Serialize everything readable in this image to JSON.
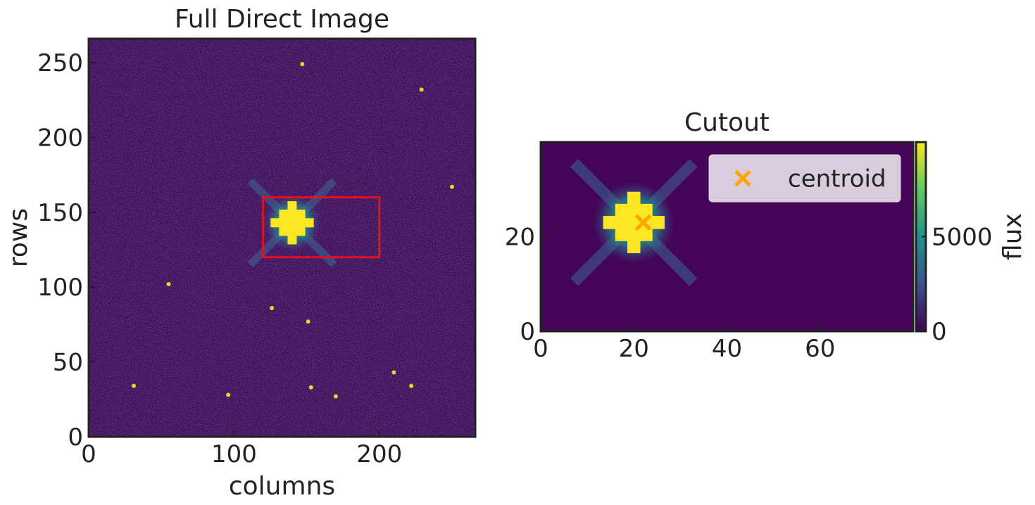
{
  "chart_data": [
    {
      "type": "image",
      "title": "Full Direct Image",
      "xlabel": "columns",
      "ylabel": "rows",
      "xlim": [
        0,
        266
      ],
      "ylim": [
        0,
        266
      ],
      "xticks": [
        0,
        100,
        200
      ],
      "yticks": [
        0,
        50,
        100,
        150,
        200,
        250
      ],
      "background": "#430f5c",
      "star": {
        "x": 140,
        "y": 143
      },
      "sources": {
        "x": [
          126,
          151,
          31,
          153,
          210,
          222,
          170,
          96,
          229,
          250,
          55,
          147
        ],
        "y": [
          86,
          77,
          34,
          33,
          43,
          34,
          27,
          28,
          232,
          167,
          102,
          249
        ],
        "color": "#d8e219"
      },
      "box": {
        "x": [
          120,
          200
        ],
        "y": [
          120,
          160
        ],
        "color": "#e0141e"
      }
    },
    {
      "type": "image",
      "title": "Cutout",
      "xlim": [
        0,
        80
      ],
      "ylim": [
        0,
        40
      ],
      "xticks": [
        0,
        20,
        40,
        60
      ],
      "yticks": [
        0,
        20
      ],
      "background": "#440558",
      "star": {
        "x": 20,
        "y": 23
      },
      "centroid": {
        "name": "centroid",
        "x": 22,
        "y": 23,
        "color": "#ffa500"
      },
      "legend": "upper right",
      "colorbar": {
        "label": "flux",
        "lim": [
          0,
          10000
        ],
        "ticks": [
          0,
          5000
        ]
      }
    }
  ]
}
